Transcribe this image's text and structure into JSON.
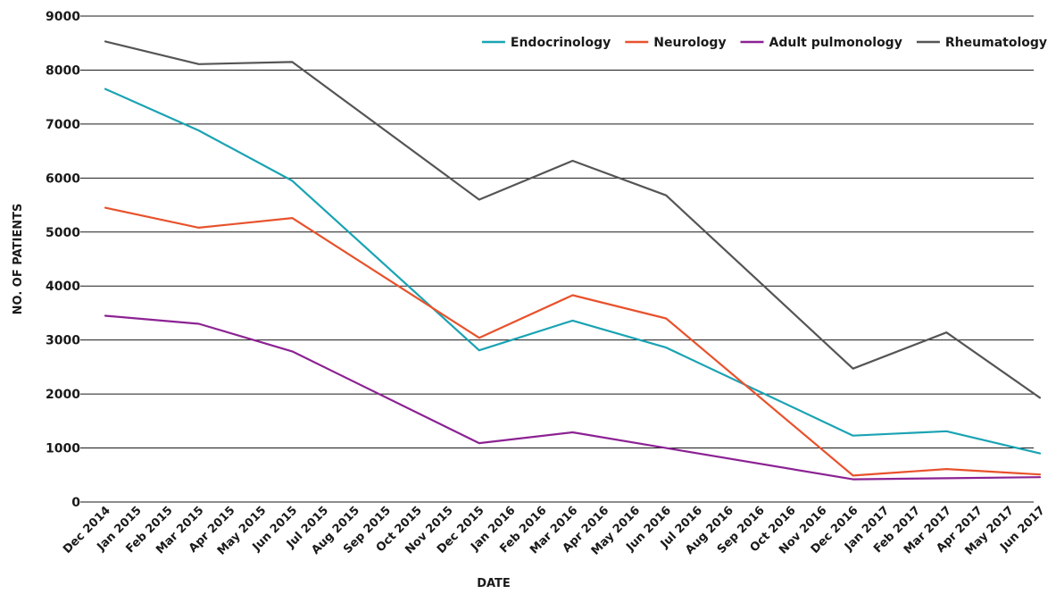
{
  "chart_data": {
    "type": "line",
    "title": "",
    "xlabel": "DATE",
    "ylabel": "NO. OF PATIENTS",
    "ylim": [
      0,
      9000
    ],
    "yticks": [
      "0",
      "1000",
      "2000",
      "3000",
      "4000",
      "5000",
      "6000",
      "7000",
      "8000",
      "9000"
    ],
    "grid": true,
    "legend_position": "top-right",
    "categories": [
      "Dec 2014",
      "Jan 2015",
      "Feb 2015",
      "Mar 2015",
      "Apr 2015",
      "May 2015",
      "Jun 2015",
      "Jul 2015",
      "Aug 2015",
      "Sep 2015",
      "Oct 2015",
      "Nov 2015",
      "Dec 2015",
      "Jan 2016",
      "Feb 2016",
      "Mar 2016",
      "Apr 2016",
      "May 2016",
      "Jun 2016",
      "Jul 2016",
      "Aug 2016",
      "Sep 2016",
      "Oct 2016",
      "Nov 2016",
      "Dec 2016",
      "Jan 2017",
      "Feb 2017",
      "Mar 2017",
      "Apr 2017",
      "May 2017",
      "Jun 2017"
    ],
    "series": [
      {
        "name": "Endocrinology",
        "color": "#1aa3b3",
        "points": [
          [
            "Dec 2014",
            7650
          ],
          [
            "Mar 2015",
            6880
          ],
          [
            "Jun 2015",
            5950
          ],
          [
            "Dec 2015",
            2810
          ],
          [
            "Mar 2016",
            3360
          ],
          [
            "Jun 2016",
            2860
          ],
          [
            "Dec 2016",
            1230
          ],
          [
            "Mar 2017",
            1310
          ],
          [
            "Jun 2017",
            900
          ]
        ]
      },
      {
        "name": "Neurology",
        "color": "#e8522c",
        "points": [
          [
            "Dec 2014",
            5450
          ],
          [
            "Mar 2015",
            5080
          ],
          [
            "Jun 2015",
            5260
          ],
          [
            "Dec 2015",
            3040
          ],
          [
            "Mar 2016",
            3830
          ],
          [
            "Jun 2016",
            3400
          ],
          [
            "Dec 2016",
            490
          ],
          [
            "Mar 2017",
            610
          ],
          [
            "Jun 2017",
            510
          ]
        ]
      },
      {
        "name": "Adult pulmonology",
        "color": "#8c2293",
        "points": [
          [
            "Dec 2014",
            3450
          ],
          [
            "Mar 2015",
            3300
          ],
          [
            "Jun 2015",
            2790
          ],
          [
            "Dec 2015",
            1090
          ],
          [
            "Mar 2016",
            1290
          ],
          [
            "Jun 2016",
            1000
          ],
          [
            "Dec 2016",
            420
          ],
          [
            "Mar 2017",
            440
          ],
          [
            "Jun 2017",
            460
          ]
        ]
      },
      {
        "name": "Rheumatology",
        "color": "#555555",
        "points": [
          [
            "Dec 2014",
            8530
          ],
          [
            "Mar 2015",
            8110
          ],
          [
            "Jun 2015",
            8150
          ],
          [
            "Dec 2015",
            5600
          ],
          [
            "Mar 2016",
            6320
          ],
          [
            "Jun 2016",
            5680
          ],
          [
            "Dec 2016",
            2470
          ],
          [
            "Mar 2017",
            3140
          ],
          [
            "Jun 2017",
            1930
          ]
        ]
      }
    ]
  }
}
